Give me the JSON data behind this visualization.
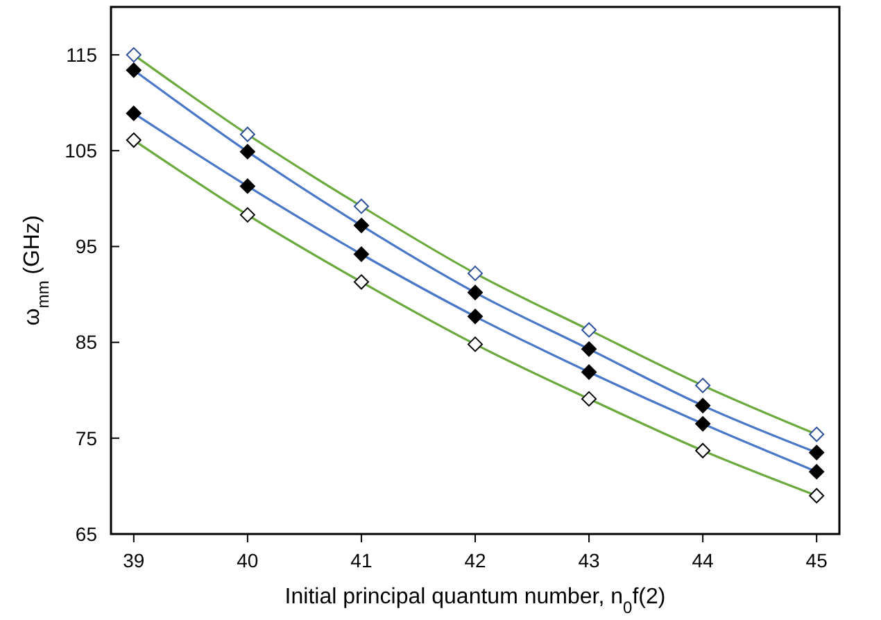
{
  "chart_data": {
    "type": "line",
    "xlabel": "Initial principal quantum number, n$_{0}$f(2)",
    "ylabel": "ω$_{mm}$ (GHz)",
    "x": [
      39,
      40,
      41,
      42,
      43,
      44,
      45
    ],
    "xlim": [
      38.8,
      45.2
    ],
    "xticks": [
      39,
      40,
      41,
      42,
      43,
      44,
      45
    ],
    "ylim": [
      65,
      120
    ],
    "yticks": [
      65,
      75,
      85,
      95,
      105,
      115
    ],
    "grid": false,
    "marker": "diamond",
    "line_style": "solid",
    "series": [
      {
        "color": "#6aaa3c",
        "values": [
          115.0,
          106.7,
          99.2,
          92.2,
          86.3,
          80.5,
          75.4
        ]
      },
      {
        "color": "#4a78c8",
        "values": [
          113.4,
          104.9,
          97.2,
          90.2,
          84.3,
          78.4,
          73.5
        ]
      },
      {
        "color": "#4a78c8",
        "values": [
          108.9,
          101.3,
          94.2,
          87.7,
          81.9,
          76.5,
          71.5
        ]
      },
      {
        "color": "#6aaa3c",
        "values": [
          106.1,
          98.3,
          91.3,
          84.8,
          79.1,
          73.7,
          69.0
        ]
      }
    ]
  }
}
